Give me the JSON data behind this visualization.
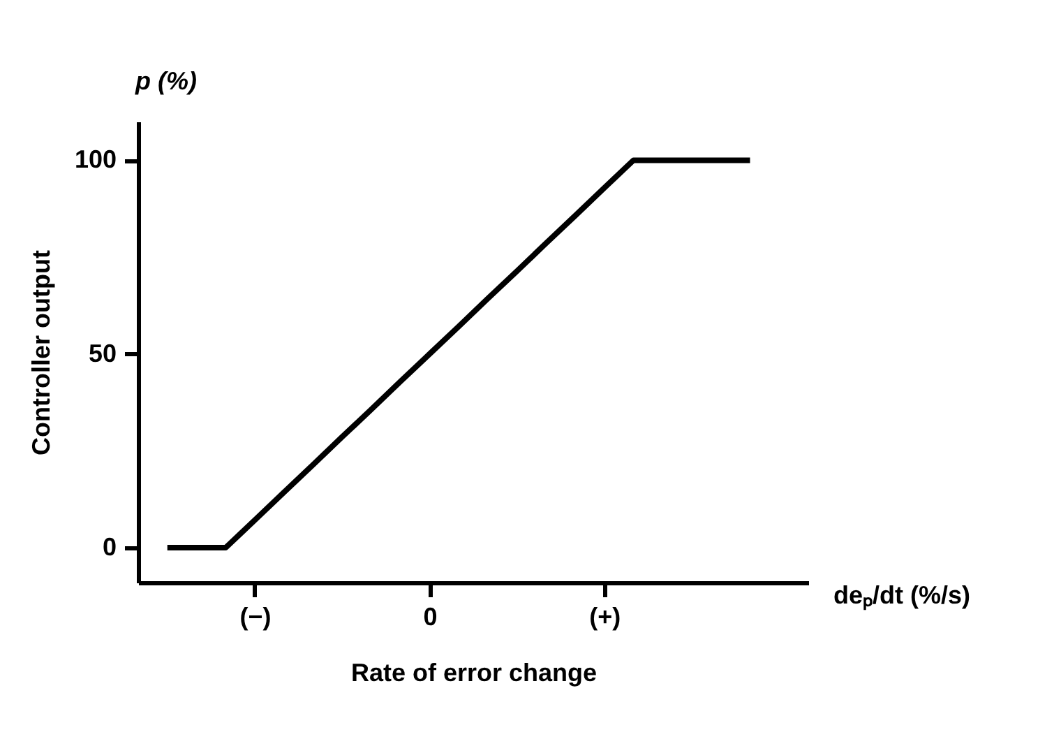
{
  "chart_data": {
    "type": "line",
    "xlabel": "Rate of error change",
    "ylabel": "Controller output",
    "annotations": [
      "p (%)",
      "deₚ/dt (%/s)"
    ],
    "categories": [
      null,
      null,
      null,
      null,
      "(−)",
      null,
      null,
      null,
      null,
      null,
      "0",
      null,
      null,
      null,
      null,
      null,
      "(+)",
      null,
      null,
      null,
      null,
      null,
      null,
      null
    ],
    "series": [
      {
        "color": "#000000",
        "values": [
          null,
          0,
          0,
          0,
          7.1,
          14.3,
          21.4,
          28.6,
          35.7,
          42.9,
          50,
          57.1,
          64.3,
          71.4,
          78.6,
          85.7,
          92.9,
          100,
          100,
          100,
          100,
          100,
          null,
          null
        ]
      }
    ],
    "ylim": [
      -9,
      110
    ],
    "yticks": [
      0,
      50,
      100
    ],
    "grid": false,
    "marker": "none",
    "line_style": "solid"
  }
}
